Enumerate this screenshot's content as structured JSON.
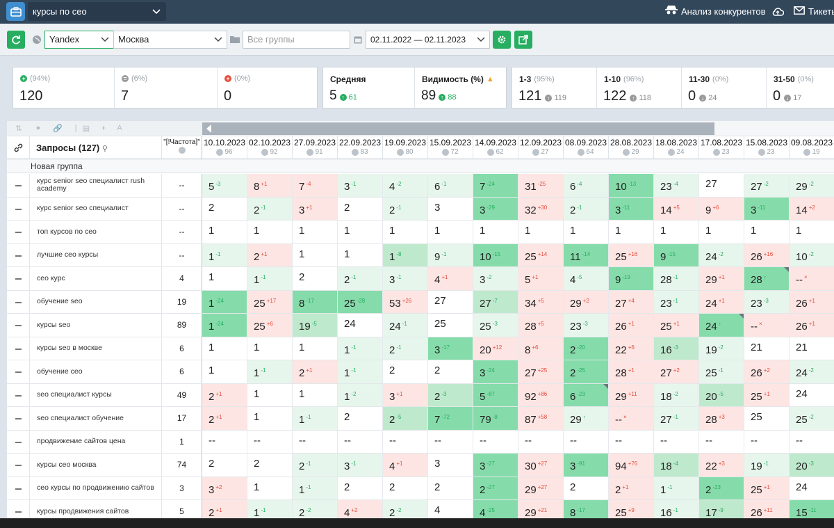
{
  "topbar": {
    "project": "курсы по сео",
    "competitors": "Анализ конкурентов",
    "tickets": "Тикеты"
  },
  "toolbar": {
    "engine": "Yandex",
    "region": "Москва",
    "groups_placeholder": "Все группы",
    "date_range": "02.11.2022 — 02.11.2023"
  },
  "stats": {
    "up": {
      "pct": "(94%)",
      "value": "120"
    },
    "same": {
      "pct": "(6%)",
      "value": "7"
    },
    "down": {
      "pct": "(0%)",
      "value": "0"
    },
    "avg": {
      "label": "Средняя",
      "value": "5",
      "delta": "61"
    },
    "vis": {
      "label": "Видимость (%)",
      "value": "89",
      "delta": "88"
    },
    "top3": {
      "label": "1-3",
      "pct": "(95%)",
      "value": "121",
      "prev": "119"
    },
    "top10": {
      "label": "1-10",
      "pct": "(96%)",
      "value": "122",
      "prev": "118"
    },
    "top30": {
      "label": "11-30",
      "pct": "(0%)",
      "value": "0",
      "prev": "24"
    },
    "top50": {
      "label": "31-50",
      "pct": "(0%)",
      "value": "0",
      "prev": "17"
    }
  },
  "table": {
    "query_header": "Запросы (127)",
    "freq_header": "\"[!Частота]\"",
    "group_name": "Новая группа",
    "dates": [
      {
        "d": "10.10.2023",
        "f": "96"
      },
      {
        "d": "02.10.2023",
        "f": "92"
      },
      {
        "d": "27.09.2023",
        "f": "91"
      },
      {
        "d": "22.09.2023",
        "f": "83"
      },
      {
        "d": "19.09.2023",
        "f": "80"
      },
      {
        "d": "15.09.2023",
        "f": "72"
      },
      {
        "d": "14.09.2023",
        "f": "62"
      },
      {
        "d": "12.09.2023",
        "f": "27"
      },
      {
        "d": "08.09.2023",
        "f": "64"
      },
      {
        "d": "28.08.2023",
        "f": "29"
      },
      {
        "d": "18.08.2023",
        "f": "24"
      },
      {
        "d": "17.08.2023",
        "f": "23"
      },
      {
        "d": "15.08.2023",
        "f": "23"
      },
      {
        "d": "09.08.2023",
        "f": "19"
      }
    ],
    "rows": [
      {
        "q": "курс senior seo специалист rush academy",
        "f": "--",
        "c": [
          "5|-3|p|1",
          "8|+1|n|r",
          "7|-4|n|r",
          "3|-1|p|1",
          "4|-2|p|1",
          "6|-1|p|1",
          "7|-24|p|3",
          "31|-25|n|r",
          "6|-4|p|1",
          "10|-13|p|3",
          "23|-4|p|1",
          "27|||",
          "27|-2|p|1",
          "29|-2|p|1"
        ]
      },
      {
        "q": "курс senior seo специалист",
        "f": "--",
        "c": [
          "2|||",
          "2|-1|p|1",
          "3|+1|n|r",
          "2|||",
          "2|-1|p|1",
          "3|||",
          "3|-29|p|3",
          "32|+30|n|r",
          "2|-1|p|1",
          "3|-11|p|3",
          "14|+5|n|r",
          "9|+6|n|r",
          "3|-11|p|3",
          "14|+2|n|r"
        ]
      },
      {
        "q": "топ курсов по сео",
        "f": "--",
        "c": [
          "1|||",
          "1|||",
          "1|||",
          "1|||",
          "1|||",
          "1|||",
          "1|||",
          "1|||",
          "1|||",
          "1|||",
          "1|||",
          "1|||",
          "1|||",
          "1|||"
        ]
      },
      {
        "q": "лучшие сео курсы",
        "f": "--",
        "c": [
          "1|-1|p|1",
          "2|+1|n|r",
          "1|||",
          "1|||",
          "1|-8|p|2",
          "9|-1|p|1",
          "10|-15|p|3",
          "25|+14|n|r",
          "11|-14|p|3",
          "25|+16|n|r",
          "9|-15|p|3",
          "24|-2|p|1",
          "26|+16|n|r",
          "10|-2|p|1"
        ]
      },
      {
        "q": "сео курс",
        "f": "4",
        "c": [
          "1|||",
          "1|-1|p|1",
          "2|||",
          "2|-1|p|1",
          "3|-1|p|1",
          "4|+1|n|r",
          "3|-2|p|1",
          "5|+1|n|r",
          "4|-5|p|1",
          "9|-19|p|3",
          "28|-1|p|1",
          "29|+1|n|r",
          "28|↑|p|3t",
          "--|×|z|r"
        ]
      },
      {
        "q": "обучение seo",
        "f": "19",
        "c": [
          "1|-24|p|3",
          "25|+17|n|r",
          "8|-17|p|3",
          "25|-28|p|3",
          "53|+26|n|r",
          "27|||",
          "27|-7|p|2",
          "34|+5|n|r",
          "29|+2|n|r",
          "27|+4|n|r",
          "23|-1|p|1",
          "24|+1|n|r",
          "23|-3|p|1",
          "26|+1|n|r"
        ]
      },
      {
        "q": "курсы seo",
        "f": "89",
        "c": [
          "1|-24|p|3",
          "25|+6|n|r",
          "19|-5|p|2",
          "24|||",
          "24|-1|p|1",
          "25|||",
          "25|-3|p|1",
          "28|+5|n|r",
          "23|-3|p|1",
          "26|+1|n|r",
          "25|+1|n|r",
          "24|↑|p|3t",
          "--|×|z|r",
          "26|+1|n|r"
        ]
      },
      {
        "q": "курсы seo в москве",
        "f": "6",
        "c": [
          "1|||",
          "1|||",
          "1|||",
          "1|-1|p|1",
          "2|-1|p|1",
          "3|-17|p|3",
          "20|+12|n|r",
          "8|+6|n|r",
          "2|-20|p|3",
          "22|+6|n|r",
          "16|-3|p|2",
          "19|-2|p|1",
          "21|||",
          "21|||"
        ]
      },
      {
        "q": "обучение сео",
        "f": "6",
        "c": [
          "1|||",
          "1|-1|p|1",
          "2|+1|n|r",
          "1|-1|p|1",
          "2|||",
          "2|||",
          "3|-24|p|3",
          "27|+25|n|r",
          "2|-25|p|3",
          "28|+1|n|r",
          "27|+2|n|r",
          "25|-1|p|1",
          "26|+2|n|r",
          "24|-2|p|1"
        ]
      },
      {
        "q": "seo специалист курсы",
        "f": "49",
        "c": [
          "2|+1|n|r",
          "1|||",
          "1|||",
          "1|-2|p|1",
          "3|+1|n|r",
          "2|-3|p|2",
          "5|-87|p|3",
          "92|+86|n|r",
          "6|-23|p|3t",
          "29|+11|n|r",
          "18|-2|p|1",
          "20|-5|p|2",
          "25|+1|n|r",
          "24|||"
        ]
      },
      {
        "q": "seo специалист обучение",
        "f": "17",
        "c": [
          "2|+1|n|r",
          "1|||",
          "1|-1|p|1",
          "2|||",
          "2|-5|p|2",
          "7|-72|p|3",
          "79|-8|p|3",
          "87|+58|n|r",
          "29|↑|p|1",
          "--|×|z|r",
          "27|-1|p|1",
          "28|+3|n|r",
          "25|||",
          "25|-2|p|1"
        ]
      },
      {
        "q": "продвижение сайтов цена",
        "f": "1",
        "c": [
          "--|||",
          "--|||",
          "--|||",
          "--|||",
          "--|||",
          "--|||",
          "--|||",
          "--|||",
          "--|||",
          "--|||",
          "--|||",
          "--|||",
          "--|||",
          "--|||"
        ]
      },
      {
        "q": "курсы сео москва",
        "f": "74",
        "c": [
          "2|||",
          "2|||",
          "2|-1|p|1",
          "3|-1|p|1",
          "4|+1|n|r",
          "3|||",
          "3|-27|p|3",
          "30|+27|n|r",
          "3|-91|p|3",
          "94|+76|n|r",
          "18|-4|p|2",
          "22|+3|n|r",
          "19|-1|p|1",
          "20|-3|p|2"
        ]
      },
      {
        "q": "сео курсы по продвижению сайтов",
        "f": "3",
        "c": [
          "3|+2|n|r",
          "1|||",
          "1|-1|p|1",
          "2|||",
          "2|||",
          "2|||",
          "2|-27|p|3",
          "29|+27|n|r",
          "2|||",
          "2|+1|n|r",
          "1|-1|p|1",
          "2|-23|p|3",
          "25|+1|n|r",
          "24|||"
        ]
      },
      {
        "q": "курсы продвижения сайтов",
        "f": "5",
        "c": [
          "2|+1|n|r",
          "1|-1|p|1",
          "2|-2|p|1",
          "4|+2|n|r",
          "2|-2|p|1",
          "4|||",
          "4|-25|p|3",
          "29|+21|n|r",
          "8|-17|p|3",
          "25|+9|n|r",
          "16|-1|p|1",
          "17|-9|p|2",
          "26|+11|n|r",
          "15|-11|p|3"
        ]
      }
    ]
  }
}
